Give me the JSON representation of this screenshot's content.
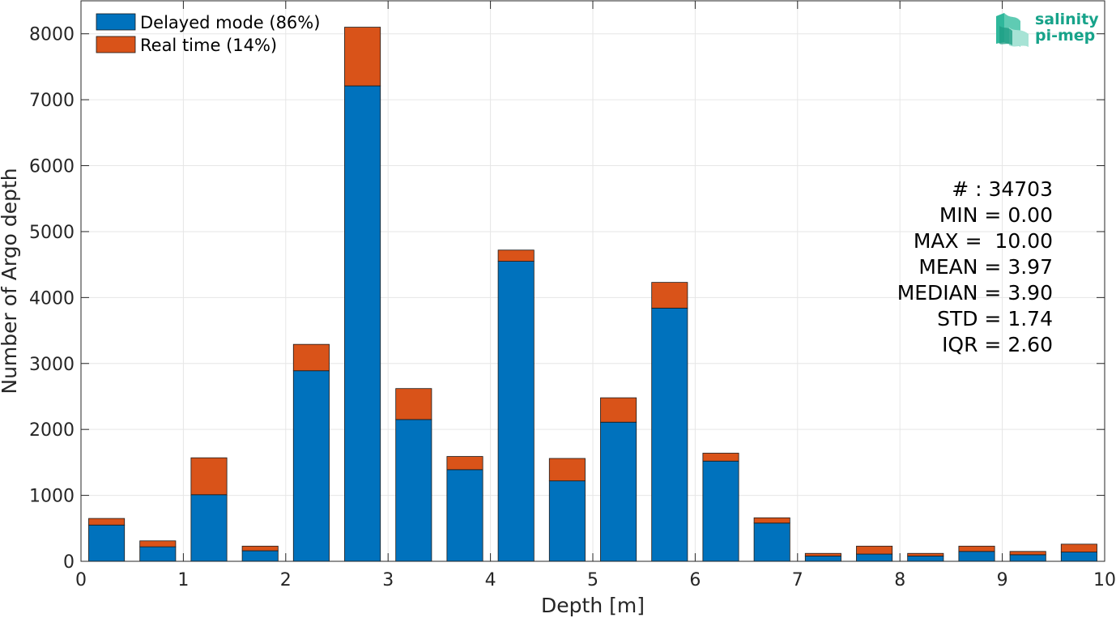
{
  "chart_data": {
    "type": "bar",
    "stacked": true,
    "x": [
      0.25,
      0.75,
      1.25,
      1.75,
      2.25,
      2.75,
      3.25,
      3.75,
      4.25,
      4.75,
      5.25,
      5.75,
      6.25,
      6.75,
      7.25,
      7.75,
      8.25,
      8.75,
      9.25,
      9.75
    ],
    "series": [
      {
        "name": "Delayed mode (86%)",
        "color": "#0072bd",
        "values": [
          550,
          220,
          1010,
          160,
          2890,
          7210,
          2150,
          1390,
          4550,
          1220,
          2110,
          3840,
          1520,
          580,
          80,
          110,
          80,
          150,
          100,
          140
        ]
      },
      {
        "name": "Real time (14%)",
        "color": "#d95319",
        "values": [
          100,
          90,
          560,
          70,
          400,
          890,
          470,
          200,
          170,
          340,
          370,
          390,
          120,
          80,
          40,
          120,
          40,
          80,
          50,
          120
        ]
      }
    ],
    "xlabel": "Depth [m]",
    "ylabel": "Number of Argo depth",
    "xlim": [
      0,
      10
    ],
    "ylim": [
      0,
      8500
    ],
    "xticks": [
      0,
      1,
      2,
      3,
      4,
      5,
      6,
      7,
      8,
      9,
      10
    ],
    "yticks": [
      0,
      1000,
      2000,
      3000,
      4000,
      5000,
      6000,
      7000,
      8000
    ],
    "grid": true,
    "legend_position": "top-left"
  },
  "stats": {
    "count": "# : 34703",
    "min": "MIN = 0.00",
    "max": "MAX =  10.00",
    "mean": "MEAN = 3.97",
    "median": "MEDIAN = 3.90",
    "std": "STD = 1.74",
    "iqr": "IQR = 2.60"
  },
  "logo": {
    "line1": "salinity",
    "line2": "pi-mep",
    "color": "#17a38a"
  }
}
